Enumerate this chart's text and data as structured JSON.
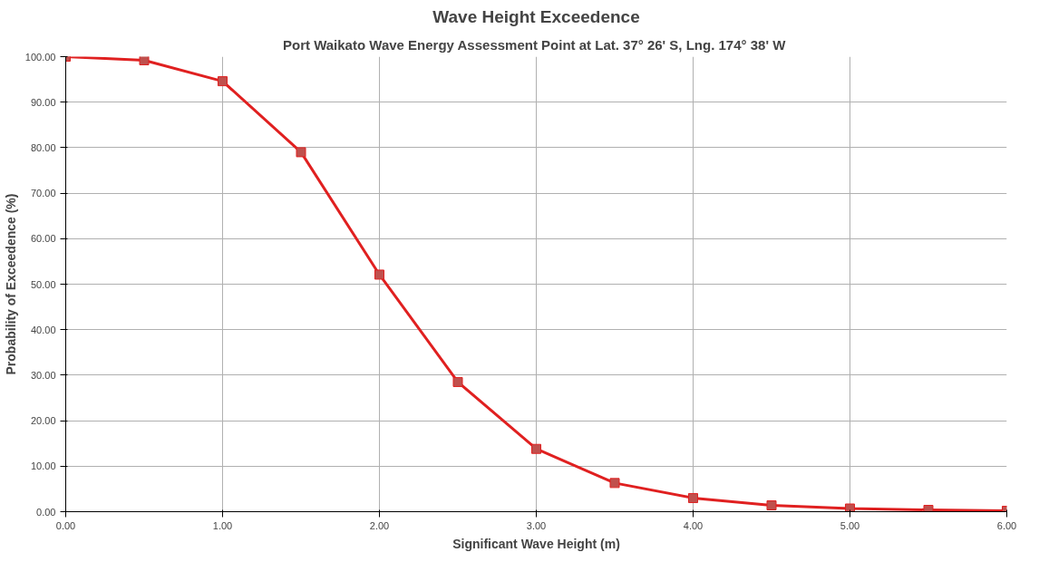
{
  "chart_data": {
    "type": "line",
    "title": "Wave Height Exceedence",
    "subtitle": "Port Waikato Wave Energy Assessment Point at Lat. 37° 26' S,  Lng. 174° 38' W",
    "xlabel": "Significant Wave Height (m)",
    "ylabel": "Probability of Exceedence (%)",
    "x": [
      0,
      0.5,
      1.0,
      1.5,
      2.0,
      2.5,
      3.0,
      3.5,
      4.0,
      4.5,
      5.0,
      5.5,
      6.0
    ],
    "series": [
      {
        "color": "#e02020",
        "values": [
          100,
          99.2,
          94.6,
          79.0,
          52.1,
          28.5,
          13.8,
          6.3,
          3.0,
          1.4,
          0.7,
          0.4,
          0.2
        ]
      }
    ],
    "xlim": [
      0,
      6
    ],
    "ylim": [
      0,
      100
    ],
    "xticks": [
      {
        "value": 0,
        "label": "0.00"
      },
      {
        "value": 1,
        "label": "1.00"
      },
      {
        "value": 2,
        "label": "2.00"
      },
      {
        "value": 3,
        "label": "3.00"
      },
      {
        "value": 4,
        "label": "4.00"
      },
      {
        "value": 5,
        "label": "5.00"
      },
      {
        "value": 6,
        "label": "6.00"
      }
    ],
    "yticks": [
      {
        "value": 0,
        "label": "0.00"
      },
      {
        "value": 10,
        "label": "10.00"
      },
      {
        "value": 20,
        "label": "20.00"
      },
      {
        "value": 30,
        "label": "30.00"
      },
      {
        "value": 40,
        "label": "40.00"
      },
      {
        "value": 50,
        "label": "50.00"
      },
      {
        "value": 60,
        "label": "60.00"
      },
      {
        "value": 70,
        "label": "70.00"
      },
      {
        "value": 80,
        "label": "80.00"
      },
      {
        "value": 90,
        "label": "90.00"
      },
      {
        "value": 100,
        "label": "100.00"
      }
    ],
    "grid": true,
    "marker": "square",
    "line_style": "solid"
  }
}
